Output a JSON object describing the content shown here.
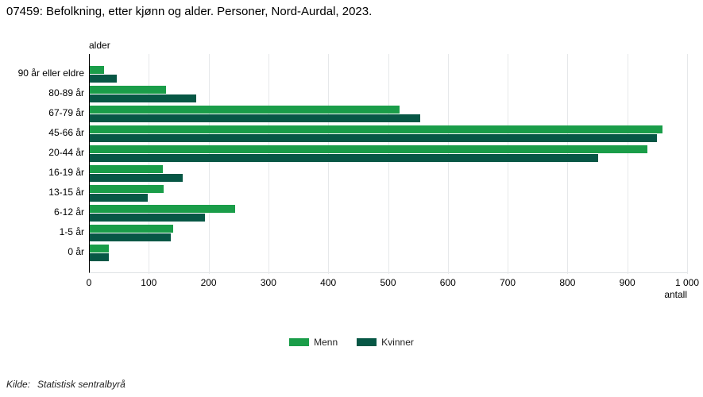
{
  "title": "07459: Befolkning, etter kjønn og alder. Personer, Nord-Aurdal, 2023.",
  "source": {
    "label": "Kilde:",
    "text": "Statistisk sentralbyrå"
  },
  "chart_data": {
    "type": "bar",
    "orientation": "horizontal",
    "title": "07459: Befolkning, etter kjønn og alder. Personer, Nord-Aurdal, 2023.",
    "y_axis_title": "alder",
    "x_axis_label": "antall",
    "categories": [
      "90 år eller eldre",
      "80-89 år",
      "67-79 år",
      "45-66 år",
      "20-44 år",
      "16-19 år",
      "13-15 år",
      "6-12 år",
      "1-5 år",
      "0 år"
    ],
    "series": [
      {
        "name": "Menn",
        "color": "#1a9d49",
        "values": [
          24,
          128,
          518,
          958,
          932,
          122,
          123,
          243,
          139,
          32
        ]
      },
      {
        "name": "Kvinner",
        "color": "#075745",
        "values": [
          45,
          178,
          553,
          948,
          850,
          155,
          97,
          192,
          136,
          32
        ]
      }
    ],
    "xlim": [
      0,
      1000
    ],
    "x_ticks": [
      0,
      100,
      200,
      300,
      400,
      500,
      600,
      700,
      800,
      900,
      1000
    ],
    "x_tick_labels": [
      "0",
      "100",
      "200",
      "300",
      "400",
      "500",
      "600",
      "700",
      "800",
      "900",
      "1 000"
    ],
    "grid": true,
    "legend_position": "bottom"
  },
  "colors": {
    "grid": "#e6e8ea",
    "axis": "#000000",
    "background": "#ffffff"
  }
}
